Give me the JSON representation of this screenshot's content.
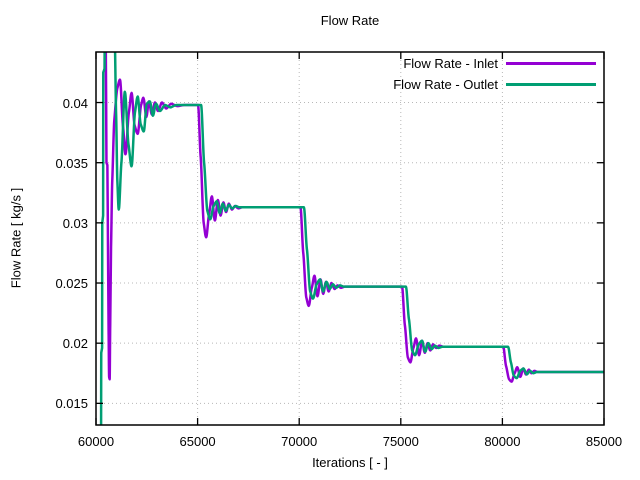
{
  "colors": {
    "inlet_line": "#9400d3",
    "outlet_line": "#009e73",
    "grid": "#b8b8b8",
    "axis": "#000000",
    "background": "#ffffff"
  },
  "chart_data": {
    "type": "line",
    "title": "Flow Rate",
    "xlabel": "Iterations [ - ]",
    "ylabel": "Flow Rate [ kg/s ]",
    "xlim": [
      60000,
      85000
    ],
    "ylim": [
      0.0132,
      0.0442
    ],
    "grid": true,
    "legend_position": "top-right-inside",
    "x_ticks": [
      60000,
      65000,
      70000,
      75000,
      80000,
      85000
    ],
    "x_tick_labels": [
      "60000",
      "65000",
      "70000",
      "75000",
      "80000",
      "85000"
    ],
    "y_ticks": [
      0.015,
      0.02,
      0.025,
      0.03,
      0.035,
      0.04
    ],
    "y_tick_labels": [
      "0.015",
      "0.02",
      "0.025",
      "0.03",
      "0.035",
      "0.04"
    ],
    "step_change_iterations": [
      60000,
      65000,
      70000,
      75000,
      80000
    ],
    "steady_state_levels": [
      0.0398,
      0.0313,
      0.0247,
      0.0197,
      0.0176
    ],
    "series": [
      {
        "name": "Flow Rate - Inlet",
        "color": "#9400d3",
        "points": [
          [
            60480,
            0.0452
          ],
          [
            60500,
            0.04
          ],
          [
            60515,
            0.035
          ],
          [
            60560,
            0.0348
          ],
          [
            60590,
            0.028
          ],
          [
            60620,
            0.021
          ],
          [
            60645,
            0.0172
          ],
          [
            60672,
            0.017
          ],
          [
            60700,
            0.0215
          ],
          [
            60740,
            0.028
          ],
          [
            60800,
            0.0335
          ],
          [
            60900,
            0.0385
          ],
          [
            61050,
            0.0412
          ],
          [
            61180,
            0.0419
          ],
          [
            61330,
            0.038
          ],
          [
            61450,
            0.0357
          ],
          [
            61620,
            0.0392
          ],
          [
            61750,
            0.0408
          ],
          [
            61900,
            0.0381
          ],
          [
            62050,
            0.0374
          ],
          [
            62220,
            0.0398
          ],
          [
            62330,
            0.0404
          ],
          [
            62480,
            0.0388
          ],
          [
            62600,
            0.0401
          ],
          [
            62750,
            0.039
          ],
          [
            62900,
            0.04
          ],
          [
            63050,
            0.0393
          ],
          [
            63250,
            0.04
          ],
          [
            63450,
            0.0395
          ],
          [
            63700,
            0.0399
          ],
          [
            64000,
            0.0397
          ],
          [
            64350,
            0.0398
          ],
          [
            65020,
            0.0398
          ],
          [
            65150,
            0.0355
          ],
          [
            65300,
            0.03
          ],
          [
            65420,
            0.0288
          ],
          [
            65570,
            0.0308
          ],
          [
            65700,
            0.0322
          ],
          [
            65850,
            0.0302
          ],
          [
            66000,
            0.0319
          ],
          [
            66130,
            0.0306
          ],
          [
            66270,
            0.0317
          ],
          [
            66400,
            0.0309
          ],
          [
            66540,
            0.0316
          ],
          [
            66690,
            0.0311
          ],
          [
            66840,
            0.0314
          ],
          [
            67000,
            0.0312
          ],
          [
            67200,
            0.0313
          ],
          [
            70060,
            0.0313
          ],
          [
            70200,
            0.0275
          ],
          [
            70350,
            0.0238
          ],
          [
            70470,
            0.0231
          ],
          [
            70620,
            0.0246
          ],
          [
            70750,
            0.0256
          ],
          [
            70900,
            0.0239
          ],
          [
            71050,
            0.0253
          ],
          [
            71180,
            0.0241
          ],
          [
            71320,
            0.0251
          ],
          [
            71450,
            0.0243
          ],
          [
            71590,
            0.025
          ],
          [
            71740,
            0.0245
          ],
          [
            71890,
            0.0248
          ],
          [
            72050,
            0.0246
          ],
          [
            72250,
            0.0247
          ],
          [
            75060,
            0.0247
          ],
          [
            75200,
            0.0215
          ],
          [
            75350,
            0.0188
          ],
          [
            75470,
            0.0184
          ],
          [
            75620,
            0.0196
          ],
          [
            75750,
            0.0204
          ],
          [
            75900,
            0.019
          ],
          [
            76050,
            0.0202
          ],
          [
            76180,
            0.0192
          ],
          [
            76320,
            0.02
          ],
          [
            76450,
            0.0194
          ],
          [
            76590,
            0.0199
          ],
          [
            76740,
            0.0196
          ],
          [
            76890,
            0.0198
          ],
          [
            77100,
            0.0197
          ],
          [
            80040,
            0.0197
          ],
          [
            80180,
            0.0181
          ],
          [
            80330,
            0.017
          ],
          [
            80450,
            0.0168
          ],
          [
            80600,
            0.0175
          ],
          [
            80730,
            0.018
          ],
          [
            80880,
            0.0172
          ],
          [
            81030,
            0.0179
          ],
          [
            81160,
            0.0174
          ],
          [
            81300,
            0.0178
          ],
          [
            81430,
            0.0175
          ],
          [
            81570,
            0.0177
          ],
          [
            81750,
            0.0176
          ],
          [
            85000,
            0.0176
          ]
        ]
      },
      {
        "name": "Flow Rate - Outlet",
        "color": "#009e73",
        "points": [
          [
            60250,
            0.0128
          ],
          [
            60258,
            0.0192
          ],
          [
            60300,
            0.0196
          ],
          [
            60308,
            0.03
          ],
          [
            60350,
            0.0306
          ],
          [
            60358,
            0.0425
          ],
          [
            60420,
            0.0428
          ],
          [
            60428,
            0.0452
          ],
          [
            60920,
            0.0452
          ],
          [
            60990,
            0.039
          ],
          [
            61050,
            0.0335
          ],
          [
            61120,
            0.0311
          ],
          [
            61250,
            0.035
          ],
          [
            61420,
            0.0409
          ],
          [
            61600,
            0.0365
          ],
          [
            61750,
            0.0347
          ],
          [
            61920,
            0.0392
          ],
          [
            62050,
            0.0405
          ],
          [
            62200,
            0.0382
          ],
          [
            62350,
            0.0376
          ],
          [
            62500,
            0.0399
          ],
          [
            62650,
            0.0401
          ],
          [
            62800,
            0.0389
          ],
          [
            62950,
            0.0399
          ],
          [
            63150,
            0.0393
          ],
          [
            63400,
            0.0398
          ],
          [
            63650,
            0.0396
          ],
          [
            63950,
            0.0398
          ],
          [
            65170,
            0.0398
          ],
          [
            65320,
            0.035
          ],
          [
            65480,
            0.031
          ],
          [
            65620,
            0.0303
          ],
          [
            65790,
            0.0314
          ],
          [
            65940,
            0.0318
          ],
          [
            66090,
            0.0308
          ],
          [
            66240,
            0.0316
          ],
          [
            66390,
            0.031
          ],
          [
            66540,
            0.0315
          ],
          [
            66700,
            0.0312
          ],
          [
            66870,
            0.0314
          ],
          [
            67050,
            0.0313
          ],
          [
            70230,
            0.0313
          ],
          [
            70380,
            0.0278
          ],
          [
            70540,
            0.0243
          ],
          [
            70680,
            0.0237
          ],
          [
            70860,
            0.0249
          ],
          [
            71020,
            0.0253
          ],
          [
            71180,
            0.0243
          ],
          [
            71340,
            0.0251
          ],
          [
            71500,
            0.0245
          ],
          [
            71660,
            0.0249
          ],
          [
            71820,
            0.0246
          ],
          [
            72000,
            0.0248
          ],
          [
            72200,
            0.0247
          ],
          [
            75250,
            0.0247
          ],
          [
            75400,
            0.022
          ],
          [
            75560,
            0.0194
          ],
          [
            75700,
            0.019
          ],
          [
            75880,
            0.0199
          ],
          [
            76040,
            0.0202
          ],
          [
            76200,
            0.0193
          ],
          [
            76360,
            0.02
          ],
          [
            76520,
            0.0195
          ],
          [
            76680,
            0.0198
          ],
          [
            76850,
            0.0196
          ],
          [
            77050,
            0.0197
          ],
          [
            80280,
            0.0197
          ],
          [
            80420,
            0.0184
          ],
          [
            80560,
            0.0173
          ],
          [
            80700,
            0.0171
          ],
          [
            80880,
            0.0177
          ],
          [
            81040,
            0.0179
          ],
          [
            81200,
            0.0174
          ],
          [
            81360,
            0.0177
          ],
          [
            81520,
            0.0175
          ],
          [
            81700,
            0.0176
          ],
          [
            85000,
            0.0176
          ]
        ]
      }
    ]
  }
}
